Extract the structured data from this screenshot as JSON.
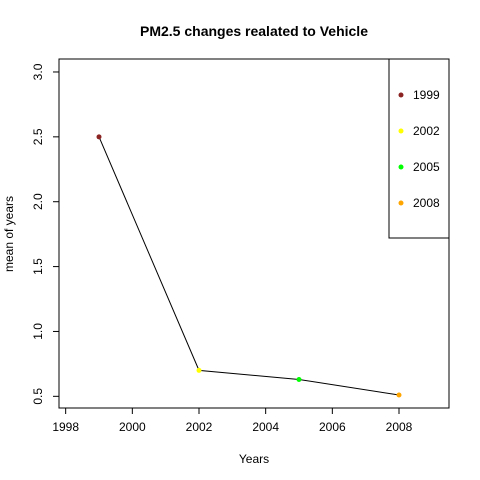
{
  "chart_data": {
    "type": "line",
    "title": "PM2.5 changes realated to Vehicle",
    "xlabel": "Years",
    "ylabel": "mean of years",
    "x": [
      1999,
      2002,
      2005,
      2008
    ],
    "y": [
      2.5,
      0.7,
      0.63,
      0.51
    ],
    "point_colors": [
      "#8B2323",
      "#FFFF00",
      "#00FF00",
      "#FFA500"
    ],
    "line_color": "#000000",
    "xlim": [
      1997.8,
      2009.5
    ],
    "ylim": [
      0.41,
      3.1
    ],
    "xticks": [
      1998,
      2000,
      2002,
      2004,
      2006,
      2008
    ],
    "yticks": [
      0.5,
      1.0,
      1.5,
      2.0,
      2.5,
      3.0
    ],
    "ytick_labels": [
      "0.5",
      "1.0",
      "1.5",
      "2.0",
      "2.5",
      "3.0"
    ],
    "grid": false,
    "legend": {
      "position": "top-right",
      "entries": [
        {
          "label": "1999",
          "color": "#8B2323"
        },
        {
          "label": "2002",
          "color": "#FFFF00"
        },
        {
          "label": "2005",
          "color": "#00FF00"
        },
        {
          "label": "2008",
          "color": "#FFA500"
        }
      ]
    }
  }
}
